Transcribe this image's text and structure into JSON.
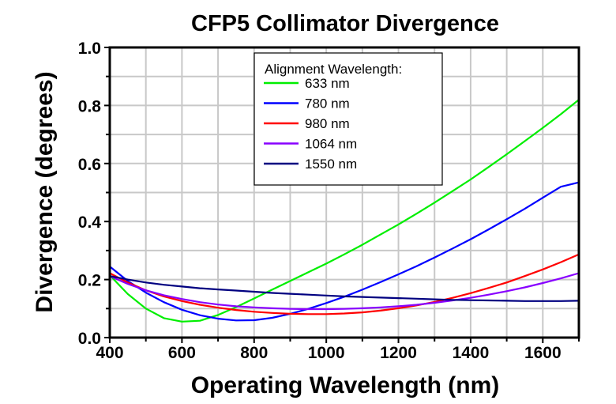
{
  "chart_data": {
    "type": "line",
    "title": "CFP5 Collimator Divergence",
    "xlabel": "Operating Wavelength (nm)",
    "ylabel": "Divergence (degrees)",
    "xlim": [
      400,
      1700
    ],
    "ylim": [
      0.0,
      1.0
    ],
    "xticks": [
      400,
      600,
      800,
      1000,
      1200,
      1400,
      1600
    ],
    "xtick_labels": [
      "400",
      "600",
      "800",
      "1000",
      "1200",
      "1400",
      "1600"
    ],
    "xminor": [
      500,
      700,
      900,
      1100,
      1300,
      1500,
      1700
    ],
    "yticks": [
      0.0,
      0.2,
      0.4,
      0.6,
      0.8,
      1.0
    ],
    "ytick_labels": [
      "0.0",
      "0.2",
      "0.4",
      "0.6",
      "0.8",
      "1.0"
    ],
    "yminor": [
      0.1,
      0.3,
      0.5,
      0.7,
      0.9
    ],
    "grid": true,
    "legend": {
      "title": "Alignment Wavelength:",
      "placement": "top-center"
    },
    "x": [
      400,
      450,
      500,
      550,
      600,
      650,
      700,
      750,
      800,
      850,
      900,
      950,
      1000,
      1050,
      1100,
      1150,
      1200,
      1250,
      1300,
      1350,
      1400,
      1450,
      1500,
      1550,
      1600,
      1650,
      1700
    ],
    "series": [
      {
        "name": "633 nm",
        "color": "#00ee00",
        "values": [
          0.215,
          0.15,
          0.1,
          0.067,
          0.055,
          0.058,
          0.078,
          0.105,
          0.135,
          0.165,
          0.195,
          0.225,
          0.255,
          0.287,
          0.32,
          0.355,
          0.39,
          0.427,
          0.465,
          0.505,
          0.545,
          0.588,
          0.632,
          0.677,
          0.723,
          0.77,
          0.82
        ]
      },
      {
        "name": "780 nm",
        "color": "#0000ff",
        "values": [
          0.245,
          0.195,
          0.155,
          0.122,
          0.096,
          0.077,
          0.065,
          0.059,
          0.06,
          0.068,
          0.082,
          0.099,
          0.119,
          0.141,
          0.165,
          0.191,
          0.218,
          0.246,
          0.276,
          0.307,
          0.339,
          0.373,
          0.408,
          0.444,
          0.482,
          0.52,
          0.535
        ]
      },
      {
        "name": "980 nm",
        "color": "#ff0000",
        "values": [
          0.222,
          0.19,
          0.163,
          0.142,
          0.126,
          0.113,
          0.103,
          0.095,
          0.089,
          0.085,
          0.082,
          0.081,
          0.081,
          0.083,
          0.087,
          0.093,
          0.101,
          0.111,
          0.123,
          0.137,
          0.153,
          0.171,
          0.19,
          0.212,
          0.235,
          0.26,
          0.287
        ]
      },
      {
        "name": "1064 nm",
        "color": "#8800ff",
        "values": [
          0.212,
          0.185,
          0.163,
          0.146,
          0.133,
          0.122,
          0.114,
          0.108,
          0.104,
          0.101,
          0.099,
          0.098,
          0.098,
          0.099,
          0.101,
          0.104,
          0.108,
          0.113,
          0.12,
          0.128,
          0.137,
          0.148,
          0.16,
          0.173,
          0.188,
          0.204,
          0.222
        ]
      },
      {
        "name": "1550 nm",
        "color": "#000080",
        "values": [
          0.212,
          0.2,
          0.19,
          0.182,
          0.176,
          0.17,
          0.166,
          0.162,
          0.158,
          0.154,
          0.151,
          0.148,
          0.145,
          0.142,
          0.14,
          0.138,
          0.136,
          0.134,
          0.132,
          0.13,
          0.129,
          0.128,
          0.127,
          0.126,
          0.126,
          0.126,
          0.127
        ]
      }
    ]
  }
}
